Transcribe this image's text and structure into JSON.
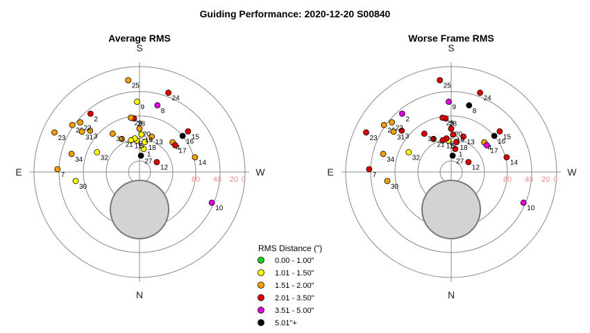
{
  "title": "Guiding Performance: 2020-12-20 S00840",
  "directions": {
    "south": "S",
    "north": "N",
    "east": "E",
    "west": "W"
  },
  "altitude_labels": [
    "60",
    "40",
    "20",
    "0"
  ],
  "legend": {
    "title": "RMS Distance (\")",
    "entries": [
      {
        "label": "0.00 - 1.00\"",
        "color": "#22cc22"
      },
      {
        "label": "1.01 - 1.50\"",
        "color": "#ffff00"
      },
      {
        "label": "1.51 - 2.00\"",
        "color": "#f5a000"
      },
      {
        "label": "2.01 - 3.50\"",
        "color": "#e00000"
      },
      {
        "label": "3.51 - 5.00\"",
        "color": "#e000e0"
      },
      {
        "label": "5.01\"+",
        "color": "#000000"
      }
    ]
  },
  "chart_data": [
    {
      "type": "scatter",
      "projection": "polar",
      "title": "Average RMS",
      "points": [
        {
          "id": "1",
          "az": 190,
          "zd": 20,
          "cls": 1
        },
        {
          "id": "2",
          "az": 140,
          "zd": 65,
          "cls": 3
        },
        {
          "id": "3",
          "az": 130,
          "zd": 55,
          "cls": 2
        },
        {
          "id": "4",
          "az": 228,
          "zd": 38,
          "cls": 2
        },
        {
          "id": "5",
          "az": 175,
          "zd": 27,
          "cls": 1
        },
        {
          "id": "6",
          "az": 172,
          "zd": 29,
          "cls": 1
        },
        {
          "id": "7",
          "az": 92,
          "zd": 70,
          "cls": 2
        },
        {
          "id": "8",
          "az": 195,
          "zd": 59,
          "cls": 4
        },
        {
          "id": "9",
          "az": 178,
          "zd": 60,
          "cls": 1
        },
        {
          "id": "10",
          "az": 293,
          "zd": 67,
          "cls": 4
        },
        {
          "id": "11",
          "az": 165,
          "zd": 28,
          "cls": 1
        },
        {
          "id": "12",
          "az": 240,
          "zd": 17,
          "cls": 3
        },
        {
          "id": "13",
          "az": 199,
          "zd": 32,
          "cls": 2
        },
        {
          "id": "14",
          "az": 255,
          "zd": 49,
          "cls": 2
        },
        {
          "id": "15",
          "az": 230,
          "zd": 54,
          "cls": 3
        },
        {
          "id": "16",
          "az": 230,
          "zd": 48,
          "cls": 5
        },
        {
          "id": "17",
          "az": 233,
          "zd": 38,
          "cls": 3
        },
        {
          "id": "18",
          "az": 190,
          "zd": 26,
          "cls": 1
        },
        {
          "id": "19",
          "az": 183,
          "zd": 32,
          "cls": 1
        },
        {
          "id": "20",
          "az": 180,
          "zd": 37,
          "cls": 2
        },
        {
          "id": "21",
          "az": 152,
          "zd": 32,
          "cls": 2
        },
        {
          "id": "22",
          "az": 130,
          "zd": 66,
          "cls": 2
        },
        {
          "id": "23",
          "az": 115,
          "zd": 80,
          "cls": 2
        },
        {
          "id": "24",
          "az": 200,
          "zd": 72,
          "cls": 3
        },
        {
          "id": "25",
          "az": 173,
          "zd": 79,
          "cls": 2
        },
        {
          "id": "26",
          "az": 125,
          "zd": 70,
          "cls": 2
        },
        {
          "id": "27",
          "az": 185,
          "zd": 14,
          "cls": 5
        },
        {
          "id": "28",
          "az": 174,
          "zd": 46,
          "cls": 3
        },
        {
          "id": "29",
          "az": 171,
          "zd": 47,
          "cls": 2
        },
        {
          "id": "30",
          "az": 82,
          "zd": 55,
          "cls": 1
        },
        {
          "id": "31",
          "az": 125,
          "zd": 60,
          "cls": 2
        },
        {
          "id": "32",
          "az": 115,
          "zd": 40,
          "cls": 1
        },
        {
          "id": "33",
          "az": 145,
          "zd": 40,
          "cls": 2
        },
        {
          "id": "34",
          "az": 105,
          "zd": 60,
          "cls": 2
        }
      ]
    },
    {
      "type": "scatter",
      "projection": "polar",
      "title": "Worse Frame RMS",
      "points": [
        {
          "id": "1",
          "az": 190,
          "zd": 20,
          "cls": 3
        },
        {
          "id": "2",
          "az": 140,
          "zd": 65,
          "cls": 4
        },
        {
          "id": "3",
          "az": 130,
          "zd": 55,
          "cls": 3
        },
        {
          "id": "4",
          "az": 228,
          "zd": 38,
          "cls": 2
        },
        {
          "id": "5",
          "az": 175,
          "zd": 27,
          "cls": 1
        },
        {
          "id": "6",
          "az": 172,
          "zd": 29,
          "cls": 3
        },
        {
          "id": "7",
          "az": 92,
          "zd": 70,
          "cls": 3
        },
        {
          "id": "8",
          "az": 195,
          "zd": 59,
          "cls": 5
        },
        {
          "id": "9",
          "az": 178,
          "zd": 60,
          "cls": 4
        },
        {
          "id": "10",
          "az": 293,
          "zd": 67,
          "cls": 4
        },
        {
          "id": "11",
          "az": 165,
          "zd": 28,
          "cls": 3
        },
        {
          "id": "12",
          "az": 240,
          "zd": 17,
          "cls": 3
        },
        {
          "id": "13",
          "az": 199,
          "zd": 32,
          "cls": 3
        },
        {
          "id": "14",
          "az": 255,
          "zd": 49,
          "cls": 3
        },
        {
          "id": "15",
          "az": 230,
          "zd": 54,
          "cls": 3
        },
        {
          "id": "16",
          "az": 230,
          "zd": 48,
          "cls": 5
        },
        {
          "id": "17",
          "az": 233,
          "zd": 38,
          "cls": 4
        },
        {
          "id": "18",
          "az": 190,
          "zd": 26,
          "cls": 3
        },
        {
          "id": "19",
          "az": 183,
          "zd": 32,
          "cls": 3
        },
        {
          "id": "20",
          "az": 180,
          "zd": 37,
          "cls": 3
        },
        {
          "id": "21",
          "az": 152,
          "zd": 32,
          "cls": 3
        },
        {
          "id": "22",
          "az": 130,
          "zd": 66,
          "cls": 2
        },
        {
          "id": "23",
          "az": 115,
          "zd": 80,
          "cls": 3
        },
        {
          "id": "24",
          "az": 200,
          "zd": 72,
          "cls": 3
        },
        {
          "id": "25",
          "az": 173,
          "zd": 79,
          "cls": 3
        },
        {
          "id": "26",
          "az": 125,
          "zd": 70,
          "cls": 2
        },
        {
          "id": "27",
          "az": 185,
          "zd": 14,
          "cls": 5
        },
        {
          "id": "28",
          "az": 174,
          "zd": 46,
          "cls": 3
        },
        {
          "id": "29",
          "az": 171,
          "zd": 47,
          "cls": 3
        },
        {
          "id": "30",
          "az": 82,
          "zd": 55,
          "cls": 2
        },
        {
          "id": "31",
          "az": 125,
          "zd": 60,
          "cls": 2
        },
        {
          "id": "32",
          "az": 115,
          "zd": 40,
          "cls": 1
        },
        {
          "id": "33",
          "az": 145,
          "zd": 40,
          "cls": 3
        },
        {
          "id": "34",
          "az": 105,
          "zd": 60,
          "cls": 2
        }
      ]
    }
  ]
}
